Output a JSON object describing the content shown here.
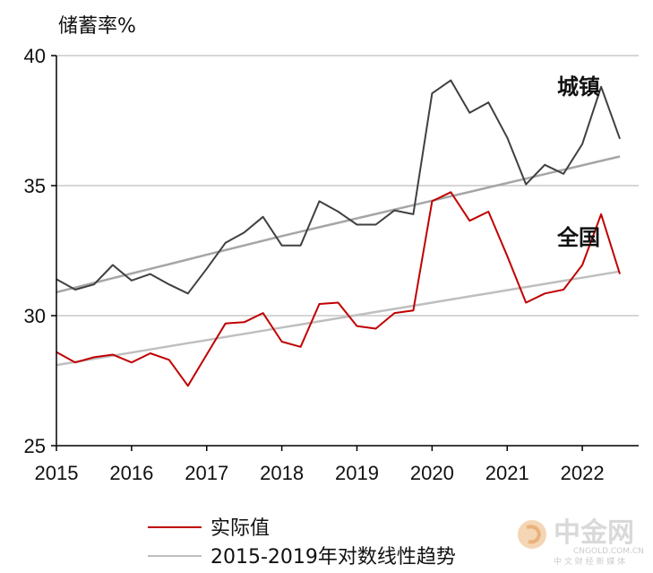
{
  "chart_data": {
    "type": "line",
    "ylabel": "储蓄率%",
    "ylim": [
      25,
      40
    ],
    "yticks": [
      25,
      30,
      35,
      40
    ],
    "xlim": [
      2015.0,
      2022.75
    ],
    "xticks": [
      "2015",
      "2016",
      "2017",
      "2018",
      "2019",
      "2020",
      "2021",
      "2022"
    ],
    "grid": "horizontal",
    "annotations": [
      {
        "text": "城镇",
        "series": "urban"
      },
      {
        "text": "全国",
        "series": "national"
      }
    ],
    "legend": [
      {
        "label": "实际值",
        "color": "#c00000"
      },
      {
        "label": "2015-2019年对数线性趋势",
        "color": "#bfbfbf"
      }
    ],
    "series": [
      {
        "key": "urban",
        "color": "#404040",
        "x": [
          2015.0,
          2015.25,
          2015.5,
          2015.75,
          2016.0,
          2016.25,
          2016.5,
          2016.75,
          2017.0,
          2017.25,
          2017.5,
          2017.75,
          2018.0,
          2018.25,
          2018.5,
          2018.75,
          2019.0,
          2019.25,
          2019.5,
          2019.75,
          2020.0,
          2020.25,
          2020.5,
          2020.75,
          2021.0,
          2021.25,
          2021.5,
          2021.75,
          2022.0,
          2022.25,
          2022.5
        ],
        "values": [
          31.4,
          31.0,
          31.2,
          31.95,
          31.35,
          31.6,
          31.2,
          30.85,
          31.8,
          32.8,
          33.2,
          33.8,
          32.7,
          32.7,
          34.4,
          34.0,
          33.5,
          33.5,
          34.05,
          33.9,
          38.55,
          39.05,
          37.8,
          38.2,
          36.85,
          35.05,
          35.8,
          35.45,
          36.6,
          38.8,
          36.8
        ]
      },
      {
        "key": "urban-trend",
        "color": "#a6a6a6",
        "x": [
          2015.0,
          2015.25,
          2015.5,
          2015.75,
          2016.0,
          2016.25,
          2016.5,
          2016.75,
          2017.0,
          2017.25,
          2017.5,
          2017.75,
          2018.0,
          2018.25,
          2018.5,
          2018.75,
          2019.0,
          2019.25,
          2019.5,
          2019.75,
          2020.0,
          2020.25,
          2020.5,
          2020.75,
          2021.0,
          2021.25,
          2021.5,
          2021.75,
          2022.0,
          2022.25,
          2022.5
        ],
        "values": [
          30.9,
          31.08,
          31.26,
          31.44,
          31.62,
          31.8,
          31.98,
          32.16,
          32.34,
          32.52,
          32.7,
          32.88,
          33.06,
          33.23,
          33.4,
          33.57,
          33.74,
          33.91,
          34.08,
          34.25,
          34.42,
          34.59,
          34.76,
          34.93,
          35.1,
          35.27,
          35.44,
          35.61,
          35.78,
          35.95,
          36.12
        ]
      },
      {
        "key": "national",
        "color": "#c00000",
        "x": [
          2015.0,
          2015.25,
          2015.5,
          2015.75,
          2016.0,
          2016.25,
          2016.5,
          2016.75,
          2017.0,
          2017.25,
          2017.5,
          2017.75,
          2018.0,
          2018.25,
          2018.5,
          2018.75,
          2019.0,
          2019.25,
          2019.5,
          2019.75,
          2020.0,
          2020.25,
          2020.5,
          2020.75,
          2021.0,
          2021.25,
          2021.5,
          2021.75,
          2022.0,
          2022.25,
          2022.5
        ],
        "values": [
          28.6,
          28.2,
          28.4,
          28.5,
          28.2,
          28.55,
          28.3,
          27.3,
          28.5,
          29.7,
          29.75,
          30.1,
          29.0,
          28.8,
          30.45,
          30.5,
          29.6,
          29.5,
          30.1,
          30.2,
          34.4,
          34.75,
          33.65,
          34.0,
          32.3,
          30.5,
          30.85,
          31.0,
          31.95,
          33.9,
          31.6
        ]
      },
      {
        "key": "national-trend",
        "color": "#bfbfbf",
        "x": [
          2015.0,
          2015.25,
          2015.5,
          2015.75,
          2016.0,
          2016.25,
          2016.5,
          2016.75,
          2017.0,
          2017.25,
          2017.5,
          2017.75,
          2018.0,
          2018.25,
          2018.5,
          2018.75,
          2019.0,
          2019.25,
          2019.5,
          2019.75,
          2020.0,
          2020.25,
          2020.5,
          2020.75,
          2021.0,
          2021.25,
          2021.5,
          2021.75,
          2022.0,
          2022.25,
          2022.5
        ],
        "values": [
          28.1,
          28.22,
          28.34,
          28.46,
          28.58,
          28.7,
          28.82,
          28.94,
          29.06,
          29.18,
          29.3,
          29.42,
          29.54,
          29.66,
          29.78,
          29.9,
          30.02,
          30.14,
          30.26,
          30.38,
          30.5,
          30.62,
          30.74,
          30.86,
          30.98,
          31.1,
          31.22,
          31.34,
          31.46,
          31.58,
          31.7
        ]
      }
    ]
  },
  "watermark": {
    "name": "中金网",
    "domain": "CNGOLD.COM.CN",
    "slogan": "中 文 财 经 新 媒 体"
  }
}
